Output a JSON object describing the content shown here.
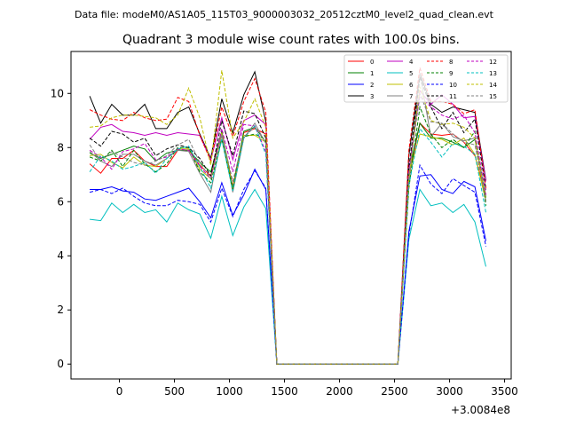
{
  "chart_data": {
    "type": "line",
    "suptitle": "Data file: modeM0/AS1A05_115T03_9000003032_20512cztM0_level2_quad_clean.evt",
    "title": "Quadrant 3 module wise count rates with 100.0s bins.",
    "xlabel": "",
    "ylabel": "",
    "x_offset_label": "+3.0084e8",
    "xlim": [
      -440,
      3560
    ],
    "ylim": [
      -0.55,
      11.55
    ],
    "xticks": [
      0,
      500,
      1000,
      1500,
      2000,
      2500,
      3000,
      3500
    ],
    "yticks": [
      0,
      2,
      4,
      6,
      8,
      10
    ],
    "grid": false,
    "legend_position": "top-right",
    "x": [
      -270,
      -170,
      -70,
      30,
      130,
      230,
      330,
      430,
      530,
      630,
      730,
      830,
      930,
      1030,
      1130,
      1230,
      1330,
      1430,
      1530,
      2430,
      2530,
      2630,
      2730,
      2830,
      2930,
      3030,
      3130,
      3230,
      3330
    ],
    "series": [
      {
        "name": "0",
        "color": "#ff0000",
        "dash": "solid",
        "values": [
          7.4,
          7.05,
          7.6,
          7.6,
          7.9,
          7.5,
          7.3,
          7.3,
          7.9,
          7.9,
          7.35,
          6.95,
          8.6,
          6.55,
          8.55,
          8.7,
          8.5,
          0.0,
          0.0,
          0.0,
          0.0,
          6.9,
          8.9,
          8.5,
          8.45,
          8.5,
          8.2,
          7.7,
          6.25
        ]
      },
      {
        "name": "1",
        "color": "#008000",
        "dash": "solid",
        "values": [
          7.8,
          7.6,
          7.75,
          7.9,
          8.05,
          7.95,
          7.5,
          7.8,
          7.9,
          7.9,
          7.45,
          7.1,
          8.6,
          6.5,
          8.6,
          8.75,
          8.2,
          0.0,
          0.0,
          0.0,
          0.0,
          7.1,
          8.9,
          8.35,
          8.35,
          8.2,
          8.0,
          8.3,
          6.15
        ]
      },
      {
        "name": "2",
        "color": "#0000ff",
        "dash": "solid",
        "values": [
          6.45,
          6.45,
          6.55,
          6.4,
          6.35,
          6.1,
          6.05,
          6.2,
          6.35,
          6.5,
          6.0,
          5.4,
          6.7,
          5.5,
          6.25,
          7.2,
          6.45,
          0.0,
          0.0,
          0.0,
          0.0,
          4.9,
          6.95,
          7.0,
          6.45,
          6.3,
          6.75,
          6.55,
          4.55
        ]
      },
      {
        "name": "3",
        "color": "#000000",
        "dash": "solid",
        "values": [
          9.9,
          8.9,
          9.6,
          9.2,
          9.2,
          9.6,
          8.7,
          8.7,
          9.3,
          9.5,
          8.5,
          7.6,
          9.8,
          8.55,
          9.95,
          10.8,
          8.95,
          0.0,
          0.0,
          0.0,
          0.0,
          7.7,
          10.75,
          9.6,
          9.3,
          9.5,
          9.4,
          9.3,
          6.8
        ]
      },
      {
        "name": "4",
        "color": "#c000c0",
        "dash": "solid",
        "values": [
          8.3,
          8.75,
          8.85,
          8.6,
          8.55,
          8.45,
          8.55,
          8.45,
          8.55,
          8.5,
          8.45,
          7.55,
          9.1,
          7.55,
          9.0,
          9.2,
          8.85,
          0.0,
          0.0,
          0.0,
          0.0,
          7.15,
          10.1,
          9.6,
          9.95,
          9.6,
          9.1,
          9.15,
          6.75
        ]
      },
      {
        "name": "5",
        "color": "#00bfbf",
        "dash": "solid",
        "values": [
          5.35,
          5.3,
          5.95,
          5.6,
          5.9,
          5.6,
          5.7,
          5.25,
          5.95,
          5.7,
          5.55,
          4.65,
          6.2,
          4.75,
          5.8,
          6.45,
          5.75,
          0.0,
          0.0,
          0.0,
          0.0,
          4.6,
          6.45,
          5.85,
          5.95,
          5.6,
          5.9,
          5.25,
          3.6
        ]
      },
      {
        "name": "6",
        "color": "#bfbf00",
        "dash": "solid",
        "values": [
          7.7,
          7.75,
          7.45,
          7.25,
          7.65,
          7.35,
          7.3,
          7.6,
          7.95,
          7.95,
          7.2,
          6.85,
          8.55,
          6.45,
          8.45,
          8.45,
          8.2,
          0.0,
          0.0,
          0.0,
          0.0,
          7.0,
          8.5,
          8.4,
          8.3,
          8.1,
          8.35,
          7.75,
          6.0
        ]
      },
      {
        "name": "7",
        "color": "#808080",
        "dash": "solid",
        "values": [
          7.85,
          7.5,
          7.3,
          7.75,
          7.75,
          7.5,
          7.35,
          7.6,
          7.9,
          7.85,
          7.05,
          6.35,
          8.45,
          6.35,
          8.35,
          8.9,
          8.15,
          0.0,
          0.0,
          0.0,
          0.0,
          6.6,
          10.75,
          8.4,
          8.9,
          8.4,
          8.25,
          8.35,
          6.0
        ]
      },
      {
        "name": "8",
        "color": "#ff0000",
        "dash": "dashed",
        "values": [
          9.4,
          9.2,
          9.05,
          9.0,
          9.3,
          9.1,
          9.0,
          9.05,
          9.85,
          9.7,
          8.45,
          7.5,
          9.5,
          8.4,
          9.7,
          10.55,
          9.3,
          0.0,
          0.0,
          0.0,
          0.0,
          7.9,
          10.95,
          9.7,
          9.7,
          9.6,
          9.25,
          9.4,
          6.5
        ]
      },
      {
        "name": "9",
        "color": "#008000",
        "dash": "dashed",
        "values": [
          7.65,
          7.5,
          7.9,
          7.3,
          7.9,
          7.4,
          7.1,
          7.4,
          8.0,
          8.0,
          7.1,
          6.7,
          8.3,
          6.45,
          8.4,
          8.5,
          8.3,
          0.0,
          0.0,
          0.0,
          0.0,
          6.5,
          9.5,
          8.5,
          8.0,
          8.3,
          8.0,
          8.6,
          5.85
        ]
      },
      {
        "name": "10",
        "color": "#0000ff",
        "dash": "dashed",
        "values": [
          6.35,
          6.45,
          6.3,
          6.5,
          6.2,
          5.95,
          5.85,
          5.85,
          6.05,
          6.0,
          5.9,
          5.25,
          6.5,
          5.45,
          6.45,
          7.15,
          6.5,
          0.0,
          0.0,
          0.0,
          0.0,
          4.75,
          7.35,
          6.65,
          6.3,
          6.85,
          6.6,
          6.35,
          4.35
        ]
      },
      {
        "name": "11",
        "color": "#000000",
        "dash": "dashed",
        "values": [
          8.35,
          8.05,
          8.6,
          8.5,
          8.2,
          8.35,
          7.7,
          7.95,
          8.1,
          8.0,
          7.6,
          6.95,
          9.0,
          7.7,
          9.35,
          9.25,
          8.35,
          0.0,
          0.0,
          0.0,
          0.0,
          7.25,
          10.6,
          9.5,
          8.7,
          9.3,
          8.55,
          9.05,
          6.45
        ]
      },
      {
        "name": "12",
        "color": "#c000c0",
        "dash": "dashed",
        "values": [
          7.9,
          7.65,
          7.2,
          7.85,
          7.95,
          8.15,
          7.55,
          7.65,
          7.95,
          7.9,
          7.3,
          6.85,
          8.7,
          7.1,
          8.85,
          8.8,
          7.85,
          0.0,
          0.0,
          0.0,
          0.0,
          7.15,
          9.9,
          9.5,
          9.2,
          9.05,
          9.2,
          8.55,
          6.25
        ]
      },
      {
        "name": "13",
        "color": "#00bfbf",
        "dash": "dashed",
        "values": [
          7.1,
          7.7,
          7.5,
          7.2,
          7.3,
          7.45,
          7.05,
          7.6,
          7.95,
          8.05,
          7.3,
          6.5,
          8.3,
          6.4,
          8.35,
          8.8,
          7.75,
          0.0,
          0.0,
          0.0,
          0.0,
          6.6,
          8.7,
          8.2,
          7.65,
          8.15,
          8.05,
          7.75,
          5.6
        ]
      },
      {
        "name": "14",
        "color": "#bfbf00",
        "dash": "dashed",
        "values": [
          8.75,
          8.8,
          9.1,
          9.2,
          9.2,
          9.15,
          9.1,
          8.85,
          9.2,
          10.2,
          9.1,
          7.35,
          10.85,
          8.35,
          8.95,
          9.8,
          8.75,
          0.0,
          0.0,
          0.0,
          0.0,
          6.85,
          10.25,
          9.0,
          8.85,
          8.9,
          8.75,
          8.35,
          6.05
        ]
      },
      {
        "name": "15",
        "color": "#808080",
        "dash": "dashed",
        "values": [
          8.1,
          7.5,
          7.85,
          7.65,
          7.45,
          7.35,
          7.5,
          7.7,
          8.1,
          8.3,
          7.45,
          6.85,
          8.5,
          6.75,
          8.4,
          8.75,
          8.2,
          0.0,
          0.0,
          0.0,
          0.0,
          7.0,
          10.0,
          8.95,
          8.9,
          8.5,
          8.2,
          8.1,
          6.0
        ]
      }
    ]
  }
}
